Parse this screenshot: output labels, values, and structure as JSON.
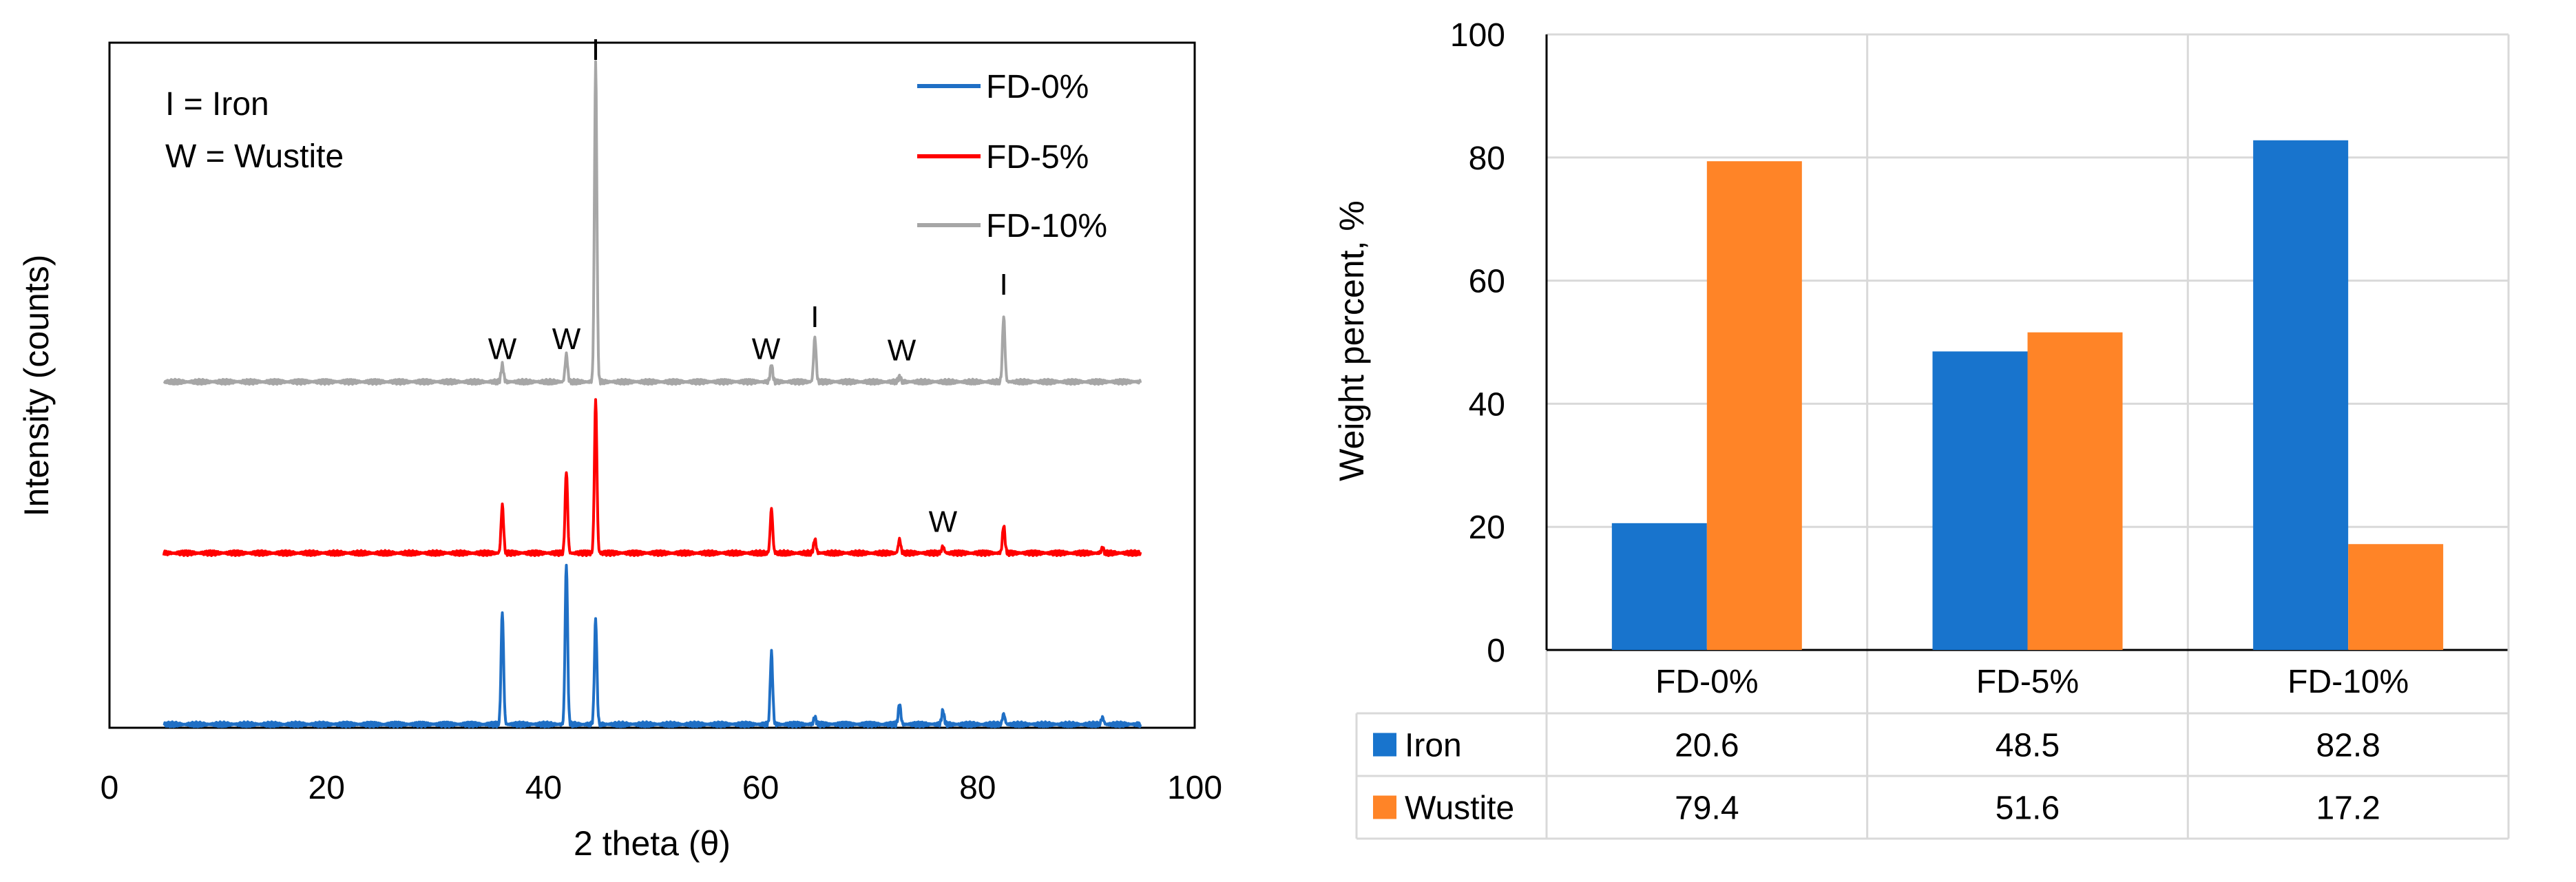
{
  "colors": {
    "iron": "#1874CD",
    "wustite": "#FF8427",
    "fd0": "#1F6FC5",
    "fd5": "#FF0000",
    "fd10": "#A6A6A6",
    "grid": "#D9D9D9",
    "axis": "#000000"
  },
  "chart_data": [
    {
      "type": "line",
      "subtype": "xrd-pattern",
      "title": "",
      "xlabel": "2 theta (θ)",
      "ylabel": "Intensity (counts)",
      "xlim": [
        0,
        100
      ],
      "xticks": [
        "0",
        "20",
        "40",
        "60",
        "80",
        "100"
      ],
      "xtick_values": [
        0,
        20,
        40,
        60,
        80,
        100
      ],
      "ylim": [
        0,
        100
      ],
      "x_range_data": [
        5,
        95
      ],
      "key_text": [
        "I = Iron",
        "W = Wustite"
      ],
      "series": [
        {
          "name": "FD-0%",
          "color": "#1F6FC5",
          "baseline": 0.5,
          "peaks": [
            {
              "x": 36.2,
              "h": 16.5
            },
            {
              "x": 42.1,
              "h": 23.5
            },
            {
              "x": 44.8,
              "h": 15.5
            },
            {
              "x": 61.0,
              "h": 10.5
            },
            {
              "x": 65.0,
              "h": 1.0
            },
            {
              "x": 72.8,
              "h": 3.0
            },
            {
              "x": 76.8,
              "h": 2.0
            },
            {
              "x": 82.4,
              "h": 1.5
            },
            {
              "x": 91.5,
              "h": 1.0
            }
          ]
        },
        {
          "name": "FD-5%",
          "color": "#FF0000",
          "baseline": 25.5,
          "peaks": [
            {
              "x": 36.2,
              "h": 7.0
            },
            {
              "x": 42.1,
              "h": 12.0
            },
            {
              "x": 44.8,
              "h": 22.5
            },
            {
              "x": 61.0,
              "h": 6.5
            },
            {
              "x": 65.0,
              "h": 2.0
            },
            {
              "x": 72.8,
              "h": 2.0
            },
            {
              "x": 76.8,
              "h": 1.0
            },
            {
              "x": 82.4,
              "h": 4.0
            },
            {
              "x": 91.5,
              "h": 0.7
            }
          ]
        },
        {
          "name": "FD-10%",
          "color": "#A6A6A6",
          "baseline": 50.5,
          "peaks": [
            {
              "x": 36.2,
              "h": 2.5
            },
            {
              "x": 42.1,
              "h": 4.0
            },
            {
              "x": 44.8,
              "h": 46.5
            },
            {
              "x": 61.0,
              "h": 2.5
            },
            {
              "x": 65.0,
              "h": 6.5
            },
            {
              "x": 72.8,
              "h": 0.7
            },
            {
              "x": 82.4,
              "h": 9.5
            }
          ]
        }
      ],
      "annotations": [
        {
          "text": "I",
          "x": 44.8,
          "y": 97.5
        },
        {
          "text": "W",
          "x": 36.2,
          "y": 53.8
        },
        {
          "text": "W",
          "x": 42.1,
          "y": 55.3
        },
        {
          "text": "W",
          "x": 60.5,
          "y": 53.8
        },
        {
          "text": "I",
          "x": 65.0,
          "y": 58.5
        },
        {
          "text": "W",
          "x": 73.0,
          "y": 53.6
        },
        {
          "text": "I",
          "x": 82.4,
          "y": 63.2
        },
        {
          "text": "W",
          "x": 76.8,
          "y": 28.6
        }
      ]
    },
    {
      "type": "bar",
      "title": "",
      "xlabel": "",
      "ylabel": "Weight percent, %",
      "ylim": [
        0,
        100
      ],
      "yticks": [
        "0",
        "20",
        "40",
        "60",
        "80",
        "100"
      ],
      "ytick_values": [
        0,
        20,
        40,
        60,
        80,
        100
      ],
      "categories": [
        "FD-0%",
        "FD-5%",
        "FD-10%"
      ],
      "series": [
        {
          "name": "Iron",
          "color": "#1874CD",
          "values": [
            20.6,
            48.5,
            82.8
          ],
          "labels": [
            "20.6",
            "48.5",
            "82.8"
          ]
        },
        {
          "name": "Wustite",
          "color": "#FF8427",
          "values": [
            79.4,
            51.6,
            17.2
          ],
          "labels": [
            "79.4",
            "51.6",
            "17.2"
          ]
        }
      ],
      "data_table": true,
      "grid": true
    }
  ]
}
